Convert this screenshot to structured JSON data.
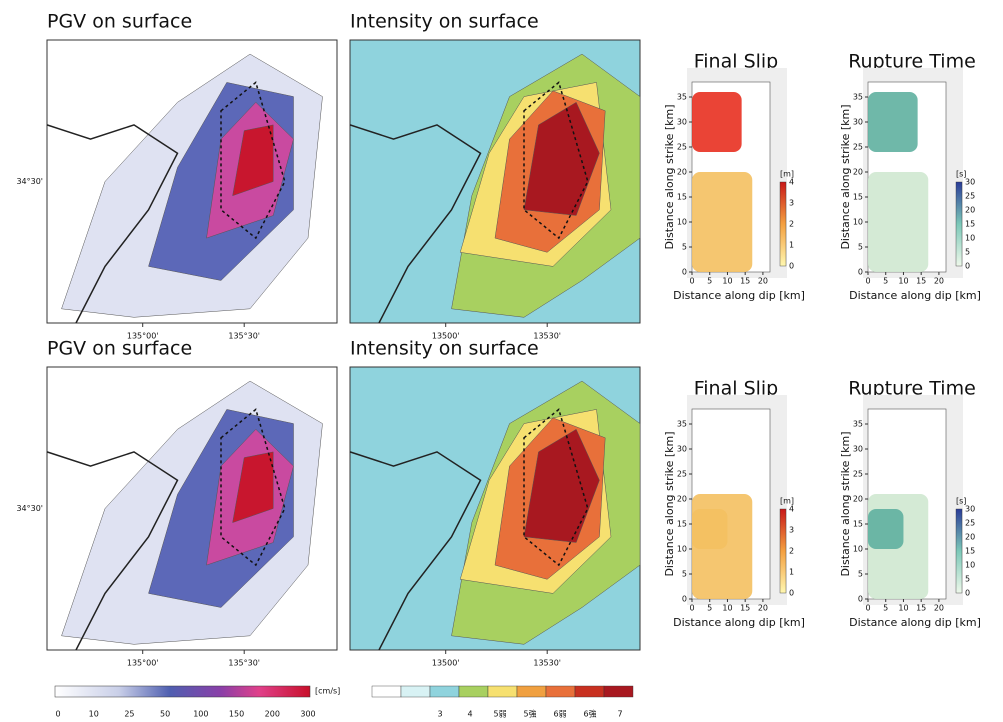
{
  "rows": [
    {
      "pgv": {
        "title": "PGV on surface",
        "lat_label": "34°30'",
        "lon_labels": [
          "135°00'",
          "135°30'"
        ]
      },
      "intensity": {
        "title": "Intensity on surface",
        "lon_labels": [
          "13500'",
          "13530'"
        ]
      },
      "slip": {
        "title": "Final Slip",
        "ylabel": "Distance along strike [km]",
        "xlabel": "Distance along dip [km]",
        "yticks": [
          0,
          5,
          10,
          15,
          20,
          25,
          30,
          35
        ],
        "xticks": [
          0,
          5,
          10,
          15,
          20
        ],
        "unit": "[m]",
        "cbar_ticks": [
          0,
          1,
          2,
          3,
          4
        ]
      },
      "rupture": {
        "title": "Rupture Time",
        "ylabel": "Distance along strike [km]",
        "xlabel": "Distance along dip [km]",
        "yticks": [
          0,
          5,
          10,
          15,
          20,
          25,
          30,
          35
        ],
        "xticks": [
          0,
          5,
          10,
          15,
          20
        ],
        "unit": "[s]",
        "cbar_ticks": [
          0,
          5,
          10,
          15,
          20,
          25,
          30
        ]
      }
    },
    {
      "pgv": {
        "title": "PGV on surface",
        "lat_label": "34°30'",
        "lon_labels": [
          "135°00'",
          "135°30'"
        ]
      },
      "intensity": {
        "title": "Intensity on surface",
        "lon_labels": [
          "13500'",
          "13530'"
        ]
      },
      "slip": {
        "title": "Final Slip",
        "ylabel": "Distance along strike [km]",
        "xlabel": "Distance along dip [km]",
        "yticks": [
          0,
          5,
          10,
          15,
          20,
          25,
          30,
          35
        ],
        "xticks": [
          0,
          5,
          10,
          15,
          20
        ],
        "unit": "[m]",
        "cbar_ticks": [
          0,
          1,
          2,
          3,
          4
        ]
      },
      "rupture": {
        "title": "Rupture Time",
        "ylabel": "Distance along strike [km]",
        "xlabel": "Distance along dip [km]",
        "yticks": [
          0,
          5,
          10,
          15,
          20,
          25,
          30,
          35
        ],
        "xticks": [
          0,
          5,
          10,
          15,
          20
        ],
        "unit": "[s]",
        "cbar_ticks": [
          0,
          5,
          10,
          15,
          20,
          25,
          30
        ]
      }
    }
  ],
  "pgv_colorbar": {
    "unit": "[cm/s]",
    "ticks": [
      0,
      10,
      25,
      50,
      100,
      150,
      200,
      300
    ]
  },
  "intensity_colorbar": {
    "ticks": [
      "3",
      "4",
      "5弱",
      "5強",
      "6弱",
      "6強",
      "7"
    ]
  }
}
